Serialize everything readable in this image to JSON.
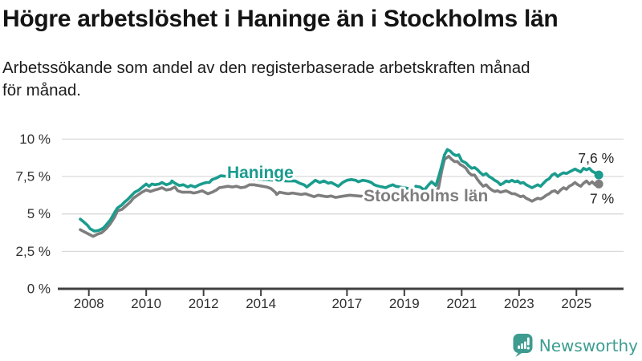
{
  "page": {
    "title": "Högre arbetslöshet i Haninge än i Stockholms län",
    "subtitle": "Arbetssökande som andel av den registerbaserade arbetskraften månad för månad."
  },
  "logo": {
    "text": "Newsworthy",
    "icon": "speech-bubble-bar-chart-icon",
    "text_color": "#3E9D91",
    "icon_color": "#3D9B8F"
  },
  "chart_data": {
    "type": "line",
    "title": "Högre arbetslöshet i Haninge än i Stockholms län",
    "subtitle": "Arbetssökande som andel av den registerbaserade arbetskraften månad för månad.",
    "grid": true,
    "legend_position": "inline-labels-on-lines",
    "x_axis": {
      "range": [
        2007.7,
        2025.79
      ],
      "ticks": [
        2008,
        2010,
        2012,
        2014,
        2017,
        2019,
        2021,
        2023,
        2025
      ]
    },
    "y_axis": {
      "range": [
        0,
        10
      ],
      "unit": "%",
      "ticks": [
        0,
        2.5,
        5,
        7.5,
        10
      ],
      "tick_labels": [
        "0 %",
        "2,5 %",
        "5 %",
        "7,5 %",
        "10 %"
      ]
    },
    "colors": {
      "grid": "#d9d9d9",
      "axis": "#3f3f3f",
      "tick_text": "#303030",
      "end_label_text": "#262626"
    },
    "series": [
      {
        "name": "Haninge",
        "color": "#1a9c8e",
        "inline_label": "Haninge",
        "label_pos": {
          "year": 2012.82,
          "value": 7.39
        },
        "end_label": "7,6 %",
        "end_value": 7.6,
        "gap": [
          2019.15,
          2019.4
        ],
        "points": [
          [
            2007.7,
            4.65
          ],
          [
            2007.8,
            4.5
          ],
          [
            2007.95,
            4.25
          ],
          [
            2008.05,
            4.0
          ],
          [
            2008.2,
            3.85
          ],
          [
            2008.35,
            3.9
          ],
          [
            2008.5,
            4.05
          ],
          [
            2008.6,
            4.25
          ],
          [
            2008.75,
            4.6
          ],
          [
            2008.9,
            5.1
          ],
          [
            2009.0,
            5.4
          ],
          [
            2009.15,
            5.6
          ],
          [
            2009.25,
            5.8
          ],
          [
            2009.35,
            5.95
          ],
          [
            2009.5,
            6.25
          ],
          [
            2009.6,
            6.45
          ],
          [
            2009.75,
            6.6
          ],
          [
            2009.9,
            6.85
          ],
          [
            2010.0,
            7.0
          ],
          [
            2010.1,
            6.85
          ],
          [
            2010.2,
            7.0
          ],
          [
            2010.3,
            6.95
          ],
          [
            2010.45,
            7.0
          ],
          [
            2010.55,
            7.1
          ],
          [
            2010.7,
            6.95
          ],
          [
            2010.85,
            7.05
          ],
          [
            2010.9,
            7.2
          ],
          [
            2011.0,
            7.05
          ],
          [
            2011.15,
            6.9
          ],
          [
            2011.3,
            6.95
          ],
          [
            2011.45,
            6.8
          ],
          [
            2011.55,
            6.9
          ],
          [
            2011.7,
            6.8
          ],
          [
            2011.85,
            6.95
          ],
          [
            2012.0,
            7.05
          ],
          [
            2012.1,
            7.1
          ],
          [
            2012.2,
            7.1
          ],
          [
            2012.3,
            7.3
          ],
          [
            2012.45,
            7.4
          ],
          [
            2012.6,
            7.55
          ],
          [
            2012.85,
            7.5
          ],
          [
            2013.1,
            7.55
          ],
          [
            2013.4,
            7.45
          ],
          [
            2013.7,
            7.35
          ],
          [
            2014.1,
            7.3
          ],
          [
            2014.5,
            7.25
          ],
          [
            2014.9,
            7.2
          ],
          [
            2015.2,
            7.2
          ],
          [
            2015.35,
            7.05
          ],
          [
            2015.5,
            6.95
          ],
          [
            2015.6,
            6.8
          ],
          [
            2015.7,
            6.95
          ],
          [
            2015.8,
            7.1
          ],
          [
            2015.9,
            7.25
          ],
          [
            2016.05,
            7.1
          ],
          [
            2016.2,
            7.2
          ],
          [
            2016.35,
            7.05
          ],
          [
            2016.45,
            7.1
          ],
          [
            2016.6,
            6.95
          ],
          [
            2016.7,
            6.85
          ],
          [
            2016.85,
            7.1
          ],
          [
            2017.0,
            7.25
          ],
          [
            2017.15,
            7.3
          ],
          [
            2017.3,
            7.25
          ],
          [
            2017.4,
            7.15
          ],
          [
            2017.55,
            7.25
          ],
          [
            2017.7,
            7.2
          ],
          [
            2017.85,
            7.1
          ],
          [
            2017.95,
            6.95
          ],
          [
            2018.1,
            6.85
          ],
          [
            2018.25,
            6.8
          ],
          [
            2018.35,
            6.75
          ],
          [
            2018.45,
            6.85
          ],
          [
            2018.6,
            6.95
          ],
          [
            2018.7,
            6.85
          ],
          [
            2018.85,
            6.8
          ],
          [
            2019.0,
            6.75
          ],
          [
            2019.15,
            6.7
          ],
          [
            2019.4,
            6.85
          ],
          [
            2019.55,
            6.8
          ],
          [
            2019.7,
            6.6
          ],
          [
            2019.85,
            6.95
          ],
          [
            2019.95,
            7.15
          ],
          [
            2020.1,
            6.9
          ],
          [
            2020.2,
            7.5
          ],
          [
            2020.3,
            8.2
          ],
          [
            2020.4,
            8.95
          ],
          [
            2020.5,
            9.3
          ],
          [
            2020.6,
            9.2
          ],
          [
            2020.7,
            9.0
          ],
          [
            2020.8,
            8.9
          ],
          [
            2020.9,
            8.95
          ],
          [
            2021.0,
            8.55
          ],
          [
            2021.15,
            8.4
          ],
          [
            2021.25,
            8.2
          ],
          [
            2021.35,
            8.05
          ],
          [
            2021.45,
            8.1
          ],
          [
            2021.55,
            7.95
          ],
          [
            2021.65,
            7.75
          ],
          [
            2021.75,
            7.6
          ],
          [
            2021.85,
            7.7
          ],
          [
            2021.95,
            7.5
          ],
          [
            2022.05,
            7.4
          ],
          [
            2022.15,
            7.25
          ],
          [
            2022.25,
            7.15
          ],
          [
            2022.35,
            6.95
          ],
          [
            2022.45,
            7.05
          ],
          [
            2022.55,
            7.2
          ],
          [
            2022.65,
            7.15
          ],
          [
            2022.75,
            7.25
          ],
          [
            2022.85,
            7.15
          ],
          [
            2022.95,
            7.2
          ],
          [
            2023.05,
            7.05
          ],
          [
            2023.15,
            7.1
          ],
          [
            2023.25,
            6.95
          ],
          [
            2023.35,
            6.85
          ],
          [
            2023.45,
            6.75
          ],
          [
            2023.55,
            6.85
          ],
          [
            2023.65,
            6.95
          ],
          [
            2023.75,
            6.85
          ],
          [
            2023.85,
            7.05
          ],
          [
            2023.95,
            7.25
          ],
          [
            2024.05,
            7.35
          ],
          [
            2024.15,
            7.6
          ],
          [
            2024.25,
            7.7
          ],
          [
            2024.35,
            7.5
          ],
          [
            2024.45,
            7.65
          ],
          [
            2024.55,
            7.75
          ],
          [
            2024.65,
            7.7
          ],
          [
            2024.75,
            7.8
          ],
          [
            2024.85,
            7.9
          ],
          [
            2024.95,
            8.0
          ],
          [
            2025.05,
            7.9
          ],
          [
            2025.15,
            7.8
          ],
          [
            2025.25,
            8.05
          ],
          [
            2025.35,
            7.95
          ],
          [
            2025.45,
            8.05
          ],
          [
            2025.55,
            7.85
          ],
          [
            2025.65,
            7.75
          ],
          [
            2025.78,
            7.6
          ]
        ]
      },
      {
        "name": "Stockholms län",
        "color": "#7e7e7e",
        "inline_label": "Stockholms län",
        "label_pos": {
          "year": 2017.58,
          "value": 5.84
        },
        "end_label": "7 %",
        "end_value": 7.0,
        "points": [
          [
            2007.7,
            3.95
          ],
          [
            2007.85,
            3.8
          ],
          [
            2008.0,
            3.65
          ],
          [
            2008.15,
            3.5
          ],
          [
            2008.3,
            3.65
          ],
          [
            2008.45,
            3.75
          ],
          [
            2008.6,
            4.0
          ],
          [
            2008.75,
            4.35
          ],
          [
            2008.9,
            4.8
          ],
          [
            2009.0,
            5.2
          ],
          [
            2009.15,
            5.3
          ],
          [
            2009.3,
            5.55
          ],
          [
            2009.45,
            5.8
          ],
          [
            2009.55,
            6.05
          ],
          [
            2009.7,
            6.25
          ],
          [
            2009.85,
            6.45
          ],
          [
            2010.0,
            6.6
          ],
          [
            2010.15,
            6.5
          ],
          [
            2010.3,
            6.6
          ],
          [
            2010.4,
            6.65
          ],
          [
            2010.55,
            6.75
          ],
          [
            2010.7,
            6.6
          ],
          [
            2010.85,
            6.65
          ],
          [
            2011.0,
            6.8
          ],
          [
            2011.1,
            6.55
          ],
          [
            2011.25,
            6.45
          ],
          [
            2011.4,
            6.45
          ],
          [
            2011.55,
            6.45
          ],
          [
            2011.65,
            6.4
          ],
          [
            2011.8,
            6.45
          ],
          [
            2011.95,
            6.55
          ],
          [
            2012.05,
            6.45
          ],
          [
            2012.15,
            6.35
          ],
          [
            2012.3,
            6.45
          ],
          [
            2012.45,
            6.6
          ],
          [
            2012.55,
            6.75
          ],
          [
            2012.7,
            6.8
          ],
          [
            2012.85,
            6.85
          ],
          [
            2013.0,
            6.8
          ],
          [
            2013.15,
            6.85
          ],
          [
            2013.3,
            6.75
          ],
          [
            2013.45,
            6.8
          ],
          [
            2013.6,
            6.95
          ],
          [
            2013.75,
            6.95
          ],
          [
            2013.9,
            6.9
          ],
          [
            2014.05,
            6.85
          ],
          [
            2014.2,
            6.8
          ],
          [
            2014.35,
            6.7
          ],
          [
            2014.5,
            6.45
          ],
          [
            2014.55,
            6.3
          ],
          [
            2014.65,
            6.45
          ],
          [
            2014.8,
            6.4
          ],
          [
            2014.95,
            6.35
          ],
          [
            2015.1,
            6.4
          ],
          [
            2015.25,
            6.35
          ],
          [
            2015.4,
            6.3
          ],
          [
            2015.55,
            6.35
          ],
          [
            2015.7,
            6.25
          ],
          [
            2015.85,
            6.15
          ],
          [
            2016.0,
            6.25
          ],
          [
            2016.15,
            6.2
          ],
          [
            2016.3,
            6.15
          ],
          [
            2016.45,
            6.2
          ],
          [
            2016.6,
            6.1
          ],
          [
            2016.75,
            6.15
          ],
          [
            2016.9,
            6.2
          ],
          [
            2017.1,
            6.25
          ],
          [
            2017.4,
            6.2
          ],
          [
            2017.7,
            6.15
          ],
          [
            2018.0,
            6.2
          ],
          [
            2018.3,
            6.15
          ],
          [
            2018.6,
            6.2
          ],
          [
            2018.9,
            6.15
          ],
          [
            2019.2,
            6.2
          ],
          [
            2019.5,
            6.15
          ],
          [
            2019.75,
            6.1
          ],
          [
            2019.95,
            6.2
          ],
          [
            2020.1,
            6.3
          ],
          [
            2020.2,
            6.8
          ],
          [
            2020.3,
            7.85
          ],
          [
            2020.4,
            8.65
          ],
          [
            2020.55,
            8.85
          ],
          [
            2020.65,
            8.65
          ],
          [
            2020.75,
            8.5
          ],
          [
            2020.85,
            8.5
          ],
          [
            2020.95,
            8.3
          ],
          [
            2021.05,
            8.2
          ],
          [
            2021.15,
            8.05
          ],
          [
            2021.25,
            7.75
          ],
          [
            2021.35,
            7.6
          ],
          [
            2021.45,
            7.6
          ],
          [
            2021.55,
            7.3
          ],
          [
            2021.65,
            7.05
          ],
          [
            2021.75,
            6.85
          ],
          [
            2021.85,
            6.95
          ],
          [
            2021.95,
            6.75
          ],
          [
            2022.05,
            6.6
          ],
          [
            2022.15,
            6.5
          ],
          [
            2022.25,
            6.55
          ],
          [
            2022.35,
            6.45
          ],
          [
            2022.45,
            6.5
          ],
          [
            2022.55,
            6.55
          ],
          [
            2022.65,
            6.45
          ],
          [
            2022.75,
            6.35
          ],
          [
            2022.85,
            6.35
          ],
          [
            2022.95,
            6.25
          ],
          [
            2023.05,
            6.15
          ],
          [
            2023.15,
            6.2
          ],
          [
            2023.25,
            6.05
          ],
          [
            2023.35,
            5.95
          ],
          [
            2023.45,
            5.85
          ],
          [
            2023.55,
            5.95
          ],
          [
            2023.65,
            6.05
          ],
          [
            2023.75,
            6.0
          ],
          [
            2023.85,
            6.1
          ],
          [
            2023.95,
            6.25
          ],
          [
            2024.05,
            6.35
          ],
          [
            2024.15,
            6.5
          ],
          [
            2024.25,
            6.55
          ],
          [
            2024.35,
            6.4
          ],
          [
            2024.45,
            6.6
          ],
          [
            2024.55,
            6.75
          ],
          [
            2024.65,
            6.65
          ],
          [
            2024.75,
            6.85
          ],
          [
            2024.85,
            6.95
          ],
          [
            2024.95,
            7.1
          ],
          [
            2025.05,
            6.95
          ],
          [
            2025.15,
            6.85
          ],
          [
            2025.25,
            7.05
          ],
          [
            2025.35,
            7.2
          ],
          [
            2025.45,
            7.0
          ],
          [
            2025.55,
            7.15
          ],
          [
            2025.65,
            6.95
          ],
          [
            2025.78,
            7.0
          ]
        ]
      }
    ]
  }
}
